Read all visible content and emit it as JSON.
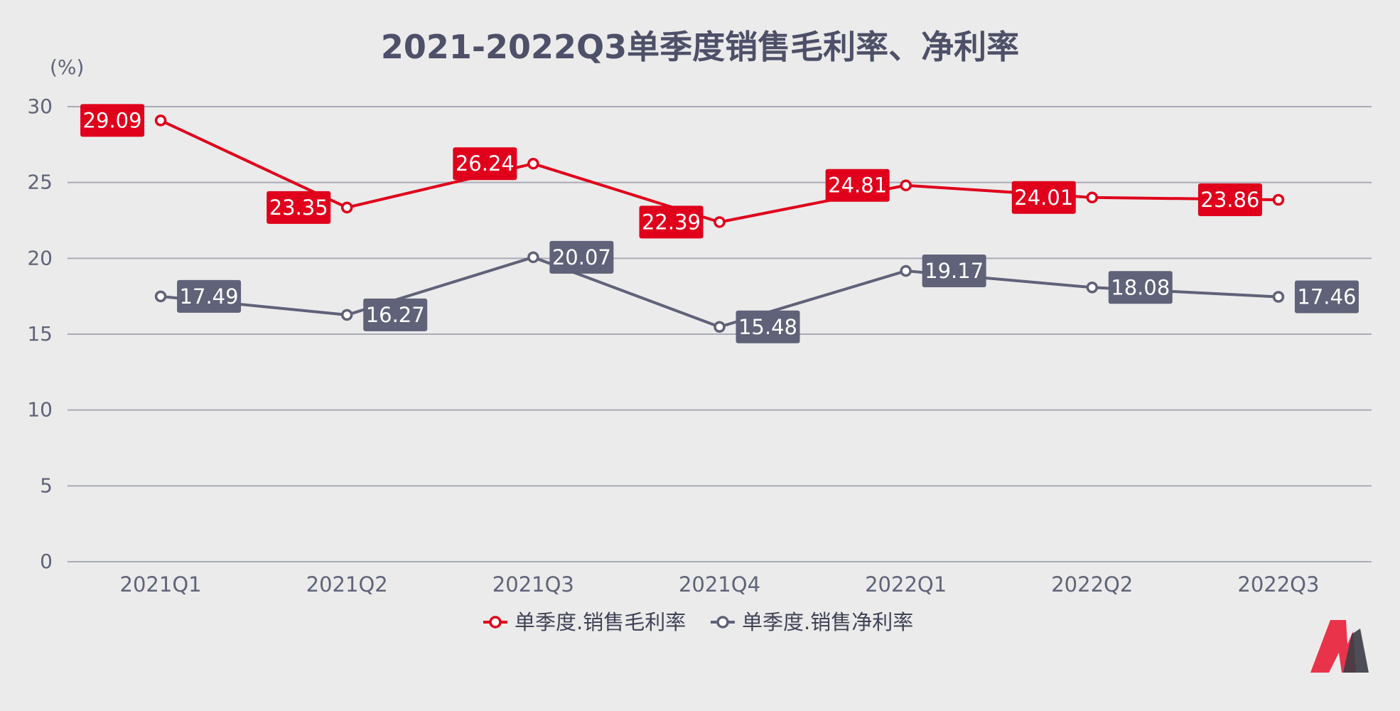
{
  "chart_data": {
    "type": "line",
    "title": "2021-2022Q3单季度销售毛利率、净利率",
    "yunit": "(%)",
    "categories": [
      "2021Q1",
      "2021Q2",
      "2021Q3",
      "2021Q4",
      "2022Q1",
      "2022Q2",
      "2022Q3"
    ],
    "yticks": [
      "0",
      "5",
      "10",
      "15",
      "20",
      "25",
      "30"
    ],
    "ylim": [
      0,
      30
    ],
    "grid": true,
    "legend_position": "bottom",
    "series": [
      {
        "name": "单季度.销售毛利率",
        "color": "#e0001b",
        "values": [
          29.09,
          23.35,
          26.24,
          22.39,
          24.81,
          24.01,
          23.86
        ],
        "labels": [
          "29.09",
          "23.35",
          "26.24",
          "22.39",
          "24.81",
          "24.01",
          "23.86"
        ]
      },
      {
        "name": "单季度.销售净利率",
        "color": "#5f6278",
        "values": [
          17.49,
          16.27,
          20.07,
          15.48,
          19.17,
          18.08,
          17.46
        ],
        "labels": [
          "17.49",
          "16.27",
          "20.07",
          "15.48",
          "19.17",
          "18.08",
          "17.46"
        ]
      }
    ]
  },
  "logo": {
    "name": "brand-logo-icon",
    "colors": [
      "#e8334a",
      "#3c3c46"
    ]
  }
}
